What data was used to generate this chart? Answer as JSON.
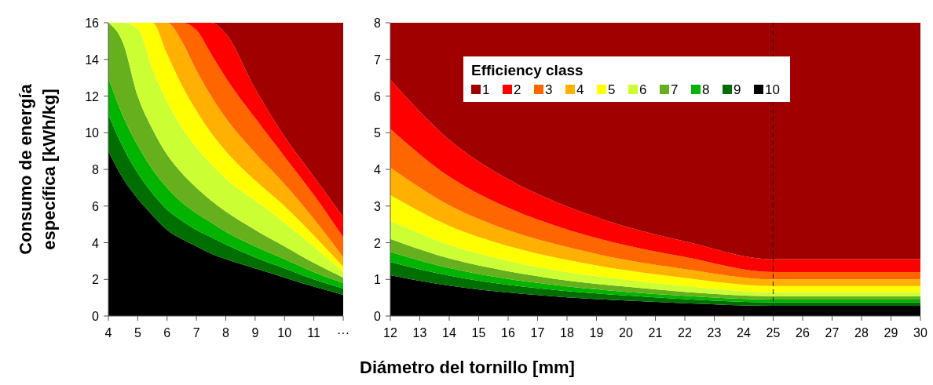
{
  "chart_data": [
    {
      "type": "area",
      "stacked": true,
      "ylabel": "Consumo de energía específica [kWh/kg]",
      "xlim": [
        4,
        12
      ],
      "ylim": [
        0,
        16
      ],
      "xticks": [
        4,
        5,
        6,
        7,
        8,
        9,
        10,
        11,
        {
          "value": 12,
          "label": "···"
        }
      ],
      "yticks": [
        0,
        2,
        4,
        6,
        8,
        10,
        12,
        14,
        16
      ],
      "legend": false,
      "x": [
        4,
        4.5,
        5,
        5.5,
        6,
        6.5,
        7,
        7.5,
        8,
        9,
        10,
        11,
        12
      ],
      "series": [
        {
          "color": "#000000",
          "values": [
            9.0,
            7.5,
            6.4,
            5.5,
            4.7,
            4.2,
            3.8,
            3.4,
            3.1,
            2.6,
            2.1,
            1.6,
            1.15
          ]
        },
        {
          "color": "#006e00",
          "values": [
            2.0,
            1.7,
            1.4,
            1.2,
            1.1,
            1.0,
            0.9,
            0.9,
            0.8,
            0.6,
            0.5,
            0.4,
            0.35
          ]
        },
        {
          "color": "#00b400",
          "values": [
            2.0,
            1.7,
            1.5,
            1.3,
            1.2,
            1.0,
            0.9,
            0.8,
            0.7,
            0.6,
            0.5,
            0.4,
            0.3
          ]
        },
        {
          "color": "#66b01e",
          "values": [
            3.0,
            4.0,
            2.7,
            2.2,
            1.8,
            1.6,
            1.4,
            1.2,
            1.1,
            0.9,
            0.7,
            0.5,
            0.3
          ]
        },
        {
          "color": "#ccff33",
          "values": [
            0,
            1.1,
            3.7,
            3.3,
            2.9,
            2.5,
            2.2,
            2.0,
            1.8,
            1.6,
            1.3,
            0.9,
            0.3
          ]
        },
        {
          "color": "#ffff00",
          "values": [
            0,
            0,
            0.3,
            2.5,
            2.6,
            2.3,
            2.0,
            1.7,
            1.5,
            1.1,
            0.9,
            0.6,
            0.3
          ]
        },
        {
          "color": "#ffb000",
          "values": [
            0,
            0,
            0,
            0,
            1.7,
            2.4,
            2.2,
            2.0,
            1.8,
            1.5,
            1.2,
            0.9,
            0.5
          ]
        },
        {
          "color": "#ff6600",
          "values": [
            0,
            0,
            0,
            0,
            0,
            1.0,
            2.2,
            2.3,
            2.2,
            1.9,
            1.5,
            1.3,
            1.1
          ]
        },
        {
          "color": "#ff0000",
          "values": [
            0,
            0,
            0,
            0,
            0,
            0,
            0.4,
            1.7,
            2.4,
            1.6,
            1.1,
            1.0,
            1.1
          ]
        },
        {
          "color": "#a00000",
          "values": [
            0,
            0,
            0,
            0,
            0,
            0,
            0,
            0,
            0.6,
            3.6,
            6.2,
            8.4,
            10.6
          ]
        }
      ]
    },
    {
      "type": "area",
      "stacked": true,
      "xlabel": "Diámetro del tornillo [mm]",
      "legend_title": "Efficiency class",
      "xlim": [
        12,
        30
      ],
      "ylim": [
        0,
        8
      ],
      "xticks": [
        12,
        13,
        14,
        15,
        16,
        17,
        18,
        19,
        20,
        21,
        22,
        23,
        24,
        25,
        26,
        27,
        28,
        29,
        30
      ],
      "yticks": [
        0,
        1,
        2,
        3,
        4,
        5,
        6,
        7,
        8
      ],
      "legend": "top",
      "ref_lines": [
        {
          "axis": "x",
          "value": 25,
          "color": "#000000",
          "line_style": "dashed"
        }
      ],
      "x": [
        12,
        14,
        16,
        18,
        20,
        22,
        25,
        30
      ],
      "series": [
        {
          "name": "10",
          "color": "#000000",
          "values": [
            1.11,
            0.83,
            0.64,
            0.51,
            0.42,
            0.35,
            0.28,
            0.28
          ]
        },
        {
          "name": "9",
          "color": "#006e00",
          "values": [
            0.36,
            0.27,
            0.21,
            0.17,
            0.14,
            0.11,
            0.09,
            0.09
          ]
        },
        {
          "name": "8",
          "color": "#00b400",
          "values": [
            0.28,
            0.21,
            0.16,
            0.13,
            0.1,
            0.09,
            0.08,
            0.08
          ]
        },
        {
          "name": "7",
          "color": "#66b01e",
          "values": [
            0.35,
            0.26,
            0.21,
            0.16,
            0.14,
            0.11,
            0.09,
            0.09
          ]
        },
        {
          "name": "6",
          "color": "#ccff33",
          "values": [
            0.5,
            0.37,
            0.29,
            0.23,
            0.19,
            0.16,
            0.11,
            0.11
          ]
        },
        {
          "name": "5",
          "color": "#ffff00",
          "values": [
            0.7,
            0.52,
            0.4,
            0.33,
            0.26,
            0.22,
            0.17,
            0.17
          ]
        },
        {
          "name": "4",
          "color": "#ffb000",
          "values": [
            0.75,
            0.56,
            0.43,
            0.35,
            0.28,
            0.24,
            0.18,
            0.18
          ]
        },
        {
          "name": "3",
          "color": "#ff6600",
          "values": [
            1.05,
            0.78,
            0.61,
            0.48,
            0.4,
            0.33,
            0.2,
            0.2
          ]
        },
        {
          "name": "2",
          "color": "#ff0000",
          "values": [
            1.35,
            1.01,
            0.78,
            0.63,
            0.51,
            0.43,
            0.35,
            0.35
          ]
        },
        {
          "name": "1",
          "color": "#a00000",
          "values": [
            1.55,
            3.19,
            4.27,
            5.01,
            5.56,
            5.96,
            6.45,
            6.45
          ]
        }
      ]
    }
  ]
}
